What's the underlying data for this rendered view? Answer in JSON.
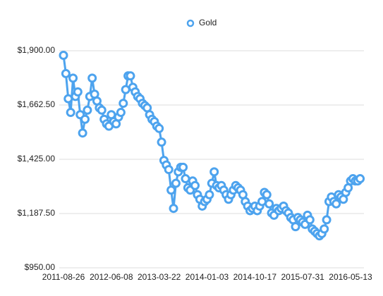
{
  "chart_data": {
    "type": "line",
    "categories": [
      "2011-08-26",
      null,
      null,
      null,
      null,
      null,
      null,
      null,
      null,
      null,
      null,
      null,
      null,
      null,
      null,
      null,
      null,
      null,
      null,
      null,
      "2012-06-08",
      null,
      null,
      null,
      null,
      null,
      null,
      null,
      null,
      null,
      null,
      null,
      null,
      null,
      null,
      null,
      null,
      null,
      null,
      null,
      "2013-03-22",
      null,
      null,
      null,
      null,
      null,
      null,
      null,
      null,
      null,
      null,
      null,
      null,
      null,
      null,
      null,
      null,
      null,
      null,
      null,
      "2014-01-03",
      null,
      null,
      null,
      null,
      null,
      null,
      null,
      null,
      null,
      null,
      null,
      null,
      null,
      null,
      null,
      null,
      null,
      null,
      null,
      "2014-10-17",
      null,
      null,
      null,
      null,
      null,
      null,
      null,
      null,
      null,
      null,
      null,
      null,
      null,
      null,
      null,
      null,
      null,
      null,
      null,
      "2015-07-31",
      null,
      null,
      null,
      null,
      null,
      null,
      null,
      null,
      null,
      null,
      null,
      null,
      null,
      null,
      null,
      null,
      null,
      null,
      null,
      "2016-05-13",
      null,
      null,
      null,
      null
    ],
    "series": [
      {
        "name": "Gold",
        "color": "#4da3ee",
        "values": [
          1880,
          1800,
          1690,
          1630,
          1780,
          1700,
          1720,
          1620,
          1540,
          1600,
          1640,
          1700,
          1780,
          1710,
          1680,
          1650,
          1640,
          1600,
          1580,
          1570,
          1620,
          1590,
          1580,
          1610,
          1630,
          1670,
          1730,
          1790,
          1790,
          1740,
          1720,
          1700,
          1690,
          1670,
          1660,
          1650,
          1620,
          1600,
          1590,
          1570,
          1560,
          1500,
          1420,
          1400,
          1380,
          1290,
          1210,
          1320,
          1370,
          1390,
          1390,
          1340,
          1300,
          1290,
          1330,
          1310,
          1270,
          1250,
          1220,
          1240,
          1250,
          1270,
          1320,
          1370,
          1310,
          1300,
          1310,
          1290,
          1270,
          1250,
          1270,
          1290,
          1310,
          1300,
          1290,
          1270,
          1240,
          1220,
          1200,
          1210,
          1220,
          1200,
          1220,
          1240,
          1280,
          1270,
          1230,
          1190,
          1180,
          1210,
          1200,
          1210,
          1220,
          1200,
          1190,
          1170,
          1160,
          1130,
          1170,
          1160,
          1150,
          1140,
          1180,
          1160,
          1120,
          1110,
          1100,
          1090,
          1100,
          1120,
          1160,
          1240,
          1260,
          1240,
          1230,
          1270,
          1260,
          1250,
          1280,
          1300,
          1330,
          1340,
          1330,
          1330,
          1340
        ]
      }
    ],
    "ylim": [
      950,
      1900
    ],
    "yticks": [
      {
        "value": 950,
        "label": "$950.00"
      },
      {
        "value": 1187.5,
        "label": "$1,187.50"
      },
      {
        "value": 1425,
        "label": "$1,425.00"
      },
      {
        "value": 1662.5,
        "label": "$1,662.50"
      },
      {
        "value": 1900,
        "label": "$1,900.00"
      }
    ],
    "grid": true
  }
}
